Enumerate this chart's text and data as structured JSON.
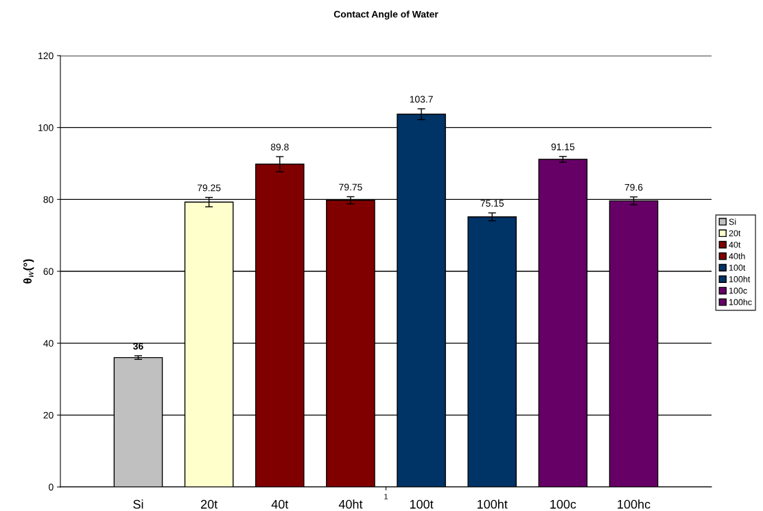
{
  "chart_data": {
    "type": "bar",
    "title": "Contact Angle of Water",
    "ylabel": "θ$_{w}$(°)",
    "categories": [
      "1"
    ],
    "series": [
      {
        "name": "Si",
        "color": "#c0c0c0",
        "values": [
          36
        ],
        "errors": [
          0.5
        ]
      },
      {
        "name": "20t",
        "color": "#ffffcc",
        "values": [
          79.25
        ],
        "errors": [
          1.3
        ]
      },
      {
        "name": "40t",
        "color": "#800000",
        "values": [
          89.8
        ],
        "errors": [
          2.1
        ]
      },
      {
        "name": "40th",
        "color": "#800000",
        "values": [
          79.75
        ],
        "errors": [
          1.0
        ]
      },
      {
        "name": "100t",
        "color": "#003366",
        "values": [
          103.7
        ],
        "errors": [
          1.5
        ]
      },
      {
        "name": "100ht",
        "color": "#003366",
        "values": [
          75.15
        ],
        "errors": [
          1.1
        ]
      },
      {
        "name": "100c",
        "color": "#660066",
        "values": [
          91.15
        ],
        "errors": [
          0.8
        ]
      },
      {
        "name": "100hc",
        "color": "#660066",
        "values": [
          79.6
        ],
        "errors": [
          1.1
        ]
      }
    ],
    "annotations": [
      "Si",
      "20t",
      "40t",
      "40ht",
      "100t",
      "100ht",
      "100c",
      "100hc"
    ],
    "data_labels": true,
    "ylim": [
      0,
      120
    ],
    "yticks": [
      0,
      20,
      40,
      60,
      80,
      100,
      120
    ],
    "grid": "y",
    "legend": "right"
  }
}
